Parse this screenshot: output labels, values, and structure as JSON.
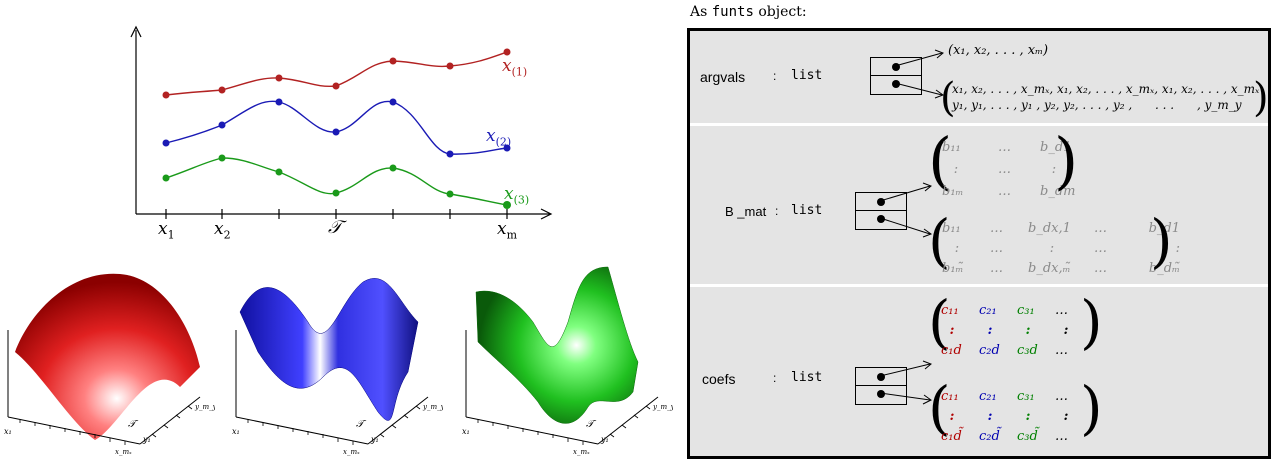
{
  "heading": {
    "prefix": "As ",
    "code": "funts",
    "suffix": " object:"
  },
  "plot": {
    "curve_labels": [
      {
        "base": "x",
        "sub": "(1)",
        "color": "#b22222"
      },
      {
        "base": "x",
        "sub": "(2)",
        "color": "#1a1ab5"
      },
      {
        "base": "x",
        "sub": "(3)",
        "color": "#1a9a1a"
      }
    ],
    "tick_labels": [
      {
        "base": "x",
        "sub": "1"
      },
      {
        "base": "x",
        "sub": "2"
      },
      {
        "base": "𝒯",
        "sub": ""
      },
      {
        "base": "x",
        "sub": "m"
      }
    ]
  },
  "surfaces": [
    {
      "color": "#e02020",
      "x_label": "x₁",
      "t_label": "𝒯",
      "xm_label": "x_mₓ",
      "y1_label": "y₁",
      "ym_label": "y_m_y"
    },
    {
      "color": "#2020e0",
      "x_label": "x₁",
      "t_label": "𝒯",
      "xm_label": "x_mₓ",
      "y1_label": "y₁",
      "ym_label": "y_m_y"
    },
    {
      "color": "#20d020",
      "x_label": "x₁",
      "t_label": "𝒯",
      "xm_label": "x_mₓ",
      "y1_label": "y₁",
      "ym_label": "y_m_y"
    }
  ],
  "object": {
    "argvals": {
      "name": "argvals",
      "sep": ":",
      "type": "list",
      "vec1": "(x₁, x₂, . . . , xₘ)",
      "row1": "x₁, x₂, . . . , x_mₓ, x₁, x₂, . . . , x_mₓ, x₁, x₂, . . . , x_mₓ",
      "row2": "y₁, y₁, . . . , y₁ , y₂, y₂, . . . , y₂ ,      . . .      , y_m_y"
    },
    "bmat": {
      "name": "B _mat",
      "sep": ":",
      "type": "list",
      "m1": [
        [
          "b₁₁",
          "…",
          "b_d1"
        ],
        [
          ":",
          "…",
          ":"
        ],
        [
          "b₁ₘ",
          "…",
          "b_dm"
        ]
      ],
      "m2": [
        [
          "b₁₁",
          "…",
          "b_dx,1",
          "…",
          "b_d1"
        ],
        [
          ":",
          "…",
          ":",
          "…",
          ":"
        ],
        [
          "b₁ₘ̃",
          "…",
          "b_dx,ₘ̃",
          "…",
          "b_dₘ̃"
        ]
      ]
    },
    "coefs": {
      "name": "coefs",
      "sep": ":",
      "type": "list",
      "m1": [
        [
          "c₁₁",
          "c₂₁",
          "c₃₁",
          "…"
        ],
        [
          ":",
          ":",
          ":",
          ":"
        ],
        [
          "c₁d",
          "c₂d",
          "c₃d",
          "…"
        ]
      ],
      "m2": [
        [
          "c₁₁",
          "c₂₁",
          "c₃₁",
          "…"
        ],
        [
          ":",
          ":",
          ":",
          ":"
        ],
        [
          "c₁d̃",
          "c₂d̃",
          "c₃d̃",
          "…"
        ]
      ],
      "col_colors": [
        "#b00000",
        "#0000b0",
        "#008000",
        "#000000"
      ]
    }
  }
}
